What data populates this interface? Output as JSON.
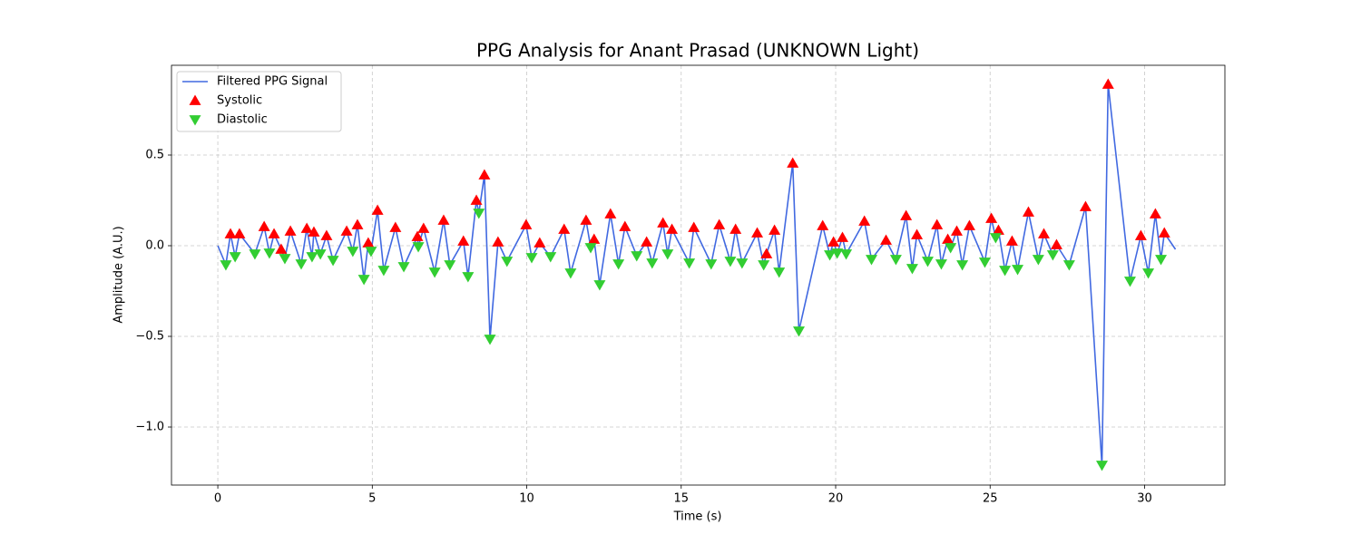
{
  "chart_data": {
    "type": "line",
    "title": "PPG Analysis for Anant Prasad (UNKNOWN Light)",
    "x_label": "Time (s)",
    "y_label": "Amplitude (A.U.)",
    "xlim": [
      -1.5,
      32.6
    ],
    "ylim": [
      -1.32,
      0.995
    ],
    "xticks": [
      0,
      5,
      10,
      15,
      20,
      25,
      30
    ],
    "yticks": [
      {
        "value": -1.0,
        "label": "−1.0"
      },
      {
        "value": -0.5,
        "label": "−0.5"
      },
      {
        "value": 0.0,
        "label": "0.0"
      },
      {
        "value": 0.5,
        "label": "0.5"
      }
    ],
    "grid": true,
    "legend": "upper left",
    "series": [
      {
        "name": "Filtered PPG Signal",
        "type": "line",
        "color": "#4169e1",
        "x": [
          0,
          0.26,
          0.41,
          0.56,
          0.7,
          1.2,
          1.5,
          1.67,
          1.82,
          2.05,
          2.17,
          2.35,
          2.7,
          2.88,
          3.05,
          3.11,
          3.32,
          3.52,
          3.73,
          4.17,
          4.37,
          4.52,
          4.73,
          4.87,
          4.96,
          5.17,
          5.37,
          5.75,
          6.02,
          6.46,
          6.49,
          6.66,
          7.02,
          7.31,
          7.51,
          7.95,
          8.1,
          8.37,
          8.45,
          8.63,
          8.81,
          9.07,
          9.36,
          9.98,
          10.16,
          10.42,
          10.77,
          11.21,
          11.42,
          11.92,
          12.07,
          12.18,
          12.36,
          12.71,
          12.97,
          13.18,
          13.56,
          13.88,
          14.06,
          14.41,
          14.56,
          14.7,
          15.26,
          15.41,
          15.97,
          16.23,
          16.59,
          16.76,
          16.97,
          17.46,
          17.67,
          17.76,
          18.02,
          18.17,
          18.61,
          18.81,
          19.58,
          19.81,
          19.93,
          20.05,
          20.22,
          20.34,
          20.93,
          21.16,
          21.63,
          21.95,
          22.28,
          22.48,
          22.63,
          22.98,
          23.28,
          23.42,
          23.63,
          23.72,
          23.92,
          24.1,
          24.33,
          24.83,
          25.04,
          25.18,
          25.27,
          25.48,
          25.71,
          25.89,
          26.24,
          26.56,
          26.74,
          27.03,
          27.15,
          27.56,
          28.09,
          28.62,
          28.82,
          29.53,
          29.88,
          30.12,
          30.35,
          30.53,
          30.64,
          31.0
        ],
        "values": [
          0,
          -0.105,
          0.065,
          -0.06,
          0.065,
          -0.045,
          0.105,
          -0.04,
          0.065,
          -0.02,
          -0.07,
          0.08,
          -0.1,
          0.095,
          -0.06,
          0.075,
          -0.045,
          0.055,
          -0.08,
          0.08,
          -0.03,
          0.115,
          -0.185,
          0.015,
          -0.03,
          0.195,
          -0.135,
          0.1,
          -0.115,
          0.05,
          -0.005,
          0.095,
          -0.145,
          0.14,
          -0.105,
          0.025,
          -0.17,
          0.25,
          0.18,
          0.39,
          -0.515,
          0.02,
          -0.085,
          0.115,
          -0.065,
          0.015,
          -0.06,
          0.09,
          -0.15,
          0.14,
          -0.01,
          0.035,
          -0.215,
          0.175,
          -0.1,
          0.105,
          -0.055,
          0.02,
          -0.095,
          0.125,
          -0.045,
          0.09,
          -0.095,
          0.1,
          -0.1,
          0.115,
          -0.085,
          0.09,
          -0.095,
          0.07,
          -0.105,
          -0.045,
          0.085,
          -0.145,
          0.455,
          -0.47,
          0.11,
          -0.05,
          0.02,
          -0.04,
          0.045,
          -0.045,
          0.135,
          -0.075,
          0.03,
          -0.075,
          0.165,
          -0.125,
          0.06,
          -0.085,
          0.115,
          -0.1,
          0.035,
          -0.01,
          0.08,
          -0.105,
          0.11,
          -0.09,
          0.15,
          0.045,
          0.085,
          -0.135,
          0.025,
          -0.13,
          0.185,
          -0.075,
          0.065,
          -0.05,
          0.005,
          -0.105,
          0.215,
          -1.21,
          0.89,
          -0.195,
          0.055,
          -0.15,
          0.175,
          -0.075,
          0.07,
          -0.02
        ]
      },
      {
        "name": "Systolic",
        "type": "scatter",
        "marker": "triangle-up",
        "color": "#ff0000",
        "x": [
          0.41,
          0.7,
          1.5,
          1.82,
          2.05,
          2.35,
          2.88,
          3.11,
          3.52,
          4.17,
          4.52,
          4.87,
          5.17,
          5.75,
          6.46,
          6.66,
          7.31,
          7.95,
          8.37,
          8.63,
          9.07,
          9.98,
          10.42,
          11.21,
          11.92,
          12.18,
          12.71,
          13.18,
          13.88,
          14.41,
          14.7,
          15.41,
          16.23,
          16.76,
          17.46,
          17.76,
          18.02,
          18.61,
          19.58,
          19.93,
          20.22,
          20.93,
          21.63,
          22.28,
          22.63,
          23.28,
          23.63,
          23.92,
          24.33,
          25.04,
          25.27,
          25.71,
          26.24,
          26.74,
          27.15,
          28.09,
          28.82,
          29.88,
          30.35,
          30.64
        ],
        "values": [
          0.065,
          0.065,
          0.105,
          0.065,
          -0.02,
          0.08,
          0.095,
          0.075,
          0.055,
          0.08,
          0.115,
          0.015,
          0.195,
          0.1,
          0.05,
          0.095,
          0.14,
          0.025,
          0.25,
          0.39,
          0.02,
          0.115,
          0.015,
          0.09,
          0.14,
          0.035,
          0.175,
          0.105,
          0.02,
          0.125,
          0.09,
          0.1,
          0.115,
          0.09,
          0.07,
          -0.045,
          0.085,
          0.455,
          0.11,
          0.02,
          0.045,
          0.135,
          0.03,
          0.165,
          0.06,
          0.115,
          0.035,
          0.08,
          0.11,
          0.15,
          0.085,
          0.025,
          0.185,
          0.065,
          0.005,
          0.215,
          0.89,
          0.055,
          0.175,
          0.07
        ]
      },
      {
        "name": "Diastolic",
        "type": "scatter",
        "marker": "triangle-down",
        "color": "#32cd32",
        "x": [
          0.26,
          0.56,
          1.2,
          1.67,
          2.17,
          2.7,
          3.05,
          3.32,
          3.73,
          4.37,
          4.73,
          4.96,
          5.37,
          6.02,
          6.49,
          7.02,
          7.51,
          8.1,
          8.45,
          8.81,
          9.36,
          10.16,
          10.77,
          11.42,
          12.07,
          12.36,
          12.97,
          13.56,
          14.06,
          14.56,
          15.26,
          15.97,
          16.59,
          16.97,
          17.67,
          18.17,
          18.81,
          19.81,
          20.05,
          20.34,
          21.16,
          21.95,
          22.48,
          22.98,
          23.42,
          23.72,
          24.1,
          24.83,
          25.18,
          25.48,
          25.89,
          26.56,
          27.03,
          27.56,
          28.62,
          29.53,
          30.12,
          30.53
        ],
        "values": [
          -0.105,
          -0.06,
          -0.045,
          -0.04,
          -0.07,
          -0.1,
          -0.06,
          -0.045,
          -0.08,
          -0.03,
          -0.185,
          -0.03,
          -0.135,
          -0.115,
          -0.005,
          -0.145,
          -0.105,
          -0.17,
          0.18,
          -0.515,
          -0.085,
          -0.065,
          -0.06,
          -0.15,
          -0.01,
          -0.215,
          -0.1,
          -0.055,
          -0.095,
          -0.045,
          -0.095,
          -0.1,
          -0.085,
          -0.095,
          -0.105,
          -0.145,
          -0.47,
          -0.05,
          -0.04,
          -0.045,
          -0.075,
          -0.075,
          -0.125,
          -0.085,
          -0.1,
          -0.01,
          -0.105,
          -0.09,
          0.045,
          -0.135,
          -0.13,
          -0.075,
          -0.05,
          -0.105,
          -1.21,
          -0.195,
          -0.15,
          -0.075
        ]
      }
    ]
  }
}
